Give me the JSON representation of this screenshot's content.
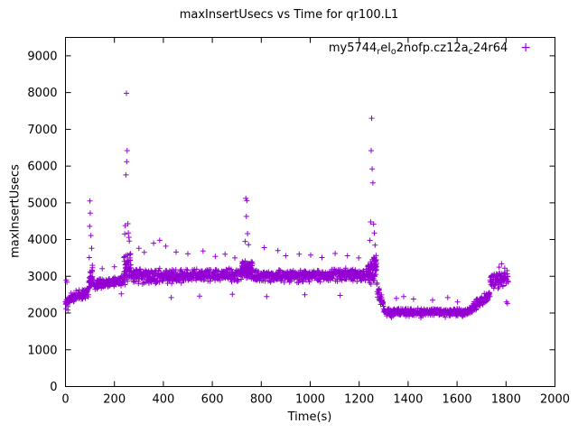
{
  "chart_data": {
    "type": "scatter",
    "title": "maxInsertUsecs vs Time for qr100.L1",
    "xlabel": "Time(s)",
    "ylabel": "maxInsertUsecs",
    "xlim": [
      0,
      2000
    ],
    "ylim": [
      0,
      9500
    ],
    "xticks": [
      0,
      200,
      400,
      600,
      800,
      1000,
      1200,
      1400,
      1600,
      1800,
      2000
    ],
    "yticks": [
      0,
      1000,
      2000,
      3000,
      4000,
      5000,
      6000,
      7000,
      8000,
      9000
    ],
    "grid": false,
    "marker": "+",
    "color": "#9400d3",
    "legend": {
      "position": "top-right-inside",
      "label_plain": "my5744_rel_o2nofp.cz12a_c24r64",
      "marker": "+",
      "parts": [
        {
          "text": "my5744",
          "sub": false
        },
        {
          "text": "r",
          "sub": true
        },
        {
          "text": "el",
          "sub": false
        },
        {
          "text": "o",
          "sub": true
        },
        {
          "text": "2nofp.cz12a",
          "sub": false
        },
        {
          "text": "c",
          "sub": true
        },
        {
          "text": "24r64",
          "sub": false
        }
      ]
    },
    "seed": 20240421,
    "points_model": {
      "note": "dense overplotted 1-point-per-second scatter approximated by baseline segments (linear base y0->y1 with +/-noise) plus explicit outlier spikes",
      "segments": [
        {
          "t0": 0,
          "t1": 15,
          "y0": 2250,
          "y1": 2350,
          "noise": 190,
          "step": 1
        },
        {
          "t0": 15,
          "t1": 95,
          "y0": 2380,
          "y1": 2580,
          "noise": 170,
          "step": 1
        },
        {
          "t0": 95,
          "t1": 112,
          "y0": 2800,
          "y1": 3000,
          "noise": 320,
          "step": 0.5
        },
        {
          "t0": 112,
          "t1": 238,
          "y0": 2780,
          "y1": 2870,
          "noise": 150,
          "step": 1
        },
        {
          "t0": 238,
          "t1": 268,
          "y0": 3150,
          "y1": 3350,
          "noise": 430,
          "step": 0.5
        },
        {
          "t0": 268,
          "t1": 340,
          "y0": 3050,
          "y1": 2980,
          "noise": 250,
          "step": 1
        },
        {
          "t0": 340,
          "t1": 720,
          "y0": 3000,
          "y1": 3030,
          "noise": 215,
          "step": 1
        },
        {
          "t0": 720,
          "t1": 765,
          "y0": 3150,
          "y1": 3230,
          "noise": 300,
          "step": 0.5
        },
        {
          "t0": 765,
          "t1": 1235,
          "y0": 2990,
          "y1": 3050,
          "noise": 200,
          "step": 1
        },
        {
          "t0": 1235,
          "t1": 1272,
          "y0": 3080,
          "y1": 3320,
          "noise": 420,
          "step": 0.5
        },
        {
          "t0": 1272,
          "t1": 1300,
          "y0": 2650,
          "y1": 2250,
          "noise": 240,
          "step": 1
        },
        {
          "t0": 1300,
          "t1": 1650,
          "y0": 2030,
          "y1": 2020,
          "noise": 115,
          "step": 1
        },
        {
          "t0": 1650,
          "t1": 1735,
          "y0": 2090,
          "y1": 2520,
          "noise": 170,
          "step": 1
        },
        {
          "t0": 1735,
          "t1": 1810,
          "y0": 2830,
          "y1": 2960,
          "noise": 230,
          "step": 1
        }
      ],
      "outliers": [
        [
          3,
          2900
        ],
        [
          6,
          2840
        ],
        [
          2,
          2120
        ],
        [
          10,
          2080
        ],
        [
          100,
          5050
        ],
        [
          101,
          4720
        ],
        [
          99,
          4360
        ],
        [
          104,
          4110
        ],
        [
          107,
          3760
        ],
        [
          97,
          3510
        ],
        [
          110,
          3300
        ],
        [
          150,
          3210
        ],
        [
          200,
          3260
        ],
        [
          228,
          2520
        ],
        [
          249,
          7980
        ],
        [
          252,
          6420
        ],
        [
          250,
          6120
        ],
        [
          247,
          5760
        ],
        [
          255,
          4430
        ],
        [
          244,
          4380
        ],
        [
          257,
          4180
        ],
        [
          259,
          4060
        ],
        [
          242,
          4150
        ],
        [
          261,
          3960
        ],
        [
          300,
          3760
        ],
        [
          322,
          3650
        ],
        [
          360,
          3900
        ],
        [
          385,
          3980
        ],
        [
          410,
          3820
        ],
        [
          452,
          3660
        ],
        [
          500,
          3610
        ],
        [
          562,
          3690
        ],
        [
          612,
          3540
        ],
        [
          652,
          3600
        ],
        [
          692,
          3500
        ],
        [
          432,
          2420
        ],
        [
          548,
          2460
        ],
        [
          682,
          2510
        ],
        [
          737,
          5120
        ],
        [
          741,
          5060
        ],
        [
          739,
          4630
        ],
        [
          744,
          4160
        ],
        [
          734,
          3950
        ],
        [
          748,
          3860
        ],
        [
          812,
          3780
        ],
        [
          868,
          3700
        ],
        [
          900,
          3560
        ],
        [
          955,
          3600
        ],
        [
          1002,
          3580
        ],
        [
          1048,
          3510
        ],
        [
          1102,
          3620
        ],
        [
          1152,
          3560
        ],
        [
          1198,
          3500
        ],
        [
          822,
          2450
        ],
        [
          978,
          2500
        ],
        [
          1122,
          2480
        ],
        [
          1251,
          7300
        ],
        [
          1249,
          6420
        ],
        [
          1253,
          5920
        ],
        [
          1256,
          5540
        ],
        [
          1247,
          4480
        ],
        [
          1259,
          4420
        ],
        [
          1262,
          4180
        ],
        [
          1244,
          3980
        ],
        [
          1265,
          3850
        ],
        [
          1282,
          2620
        ],
        [
          1292,
          2340
        ],
        [
          1352,
          2400
        ],
        [
          1422,
          2380
        ],
        [
          1500,
          2350
        ],
        [
          1562,
          2420
        ],
        [
          1602,
          2300
        ],
        [
          1332,
          1880
        ],
        [
          1452,
          1870
        ],
        [
          1552,
          1885
        ],
        [
          1622,
          1905
        ],
        [
          1382,
          2450
        ],
        [
          1782,
          3340
        ],
        [
          1772,
          3250
        ],
        [
          1795,
          3220
        ],
        [
          1802,
          2300
        ],
        [
          1806,
          2260
        ]
      ]
    }
  }
}
